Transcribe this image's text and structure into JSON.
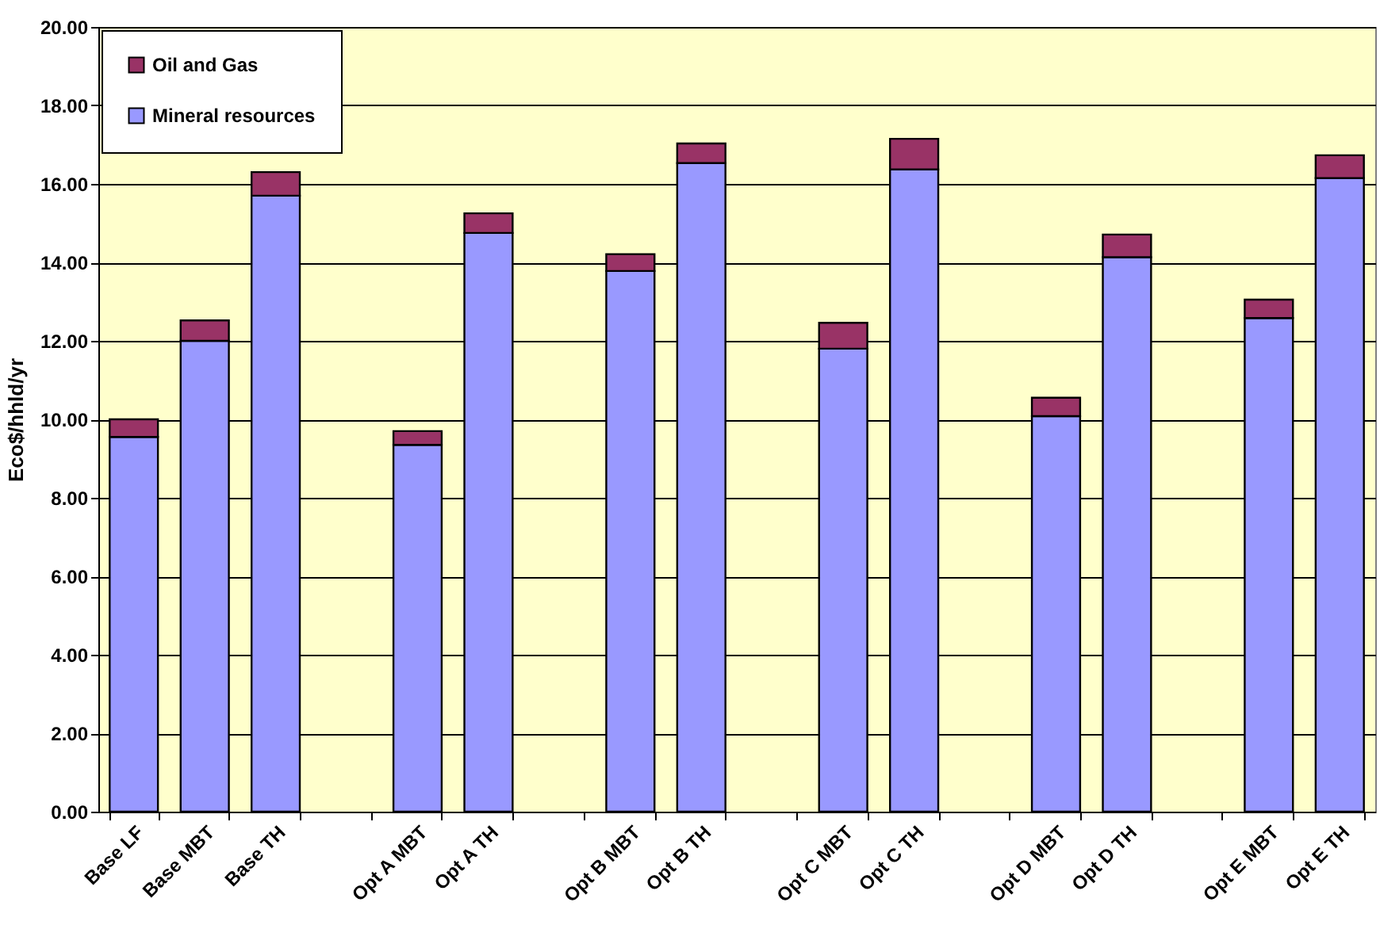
{
  "chart_data": {
    "type": "bar",
    "stacked": true,
    "ylabel": "Eco$/hhld/yr",
    "categories": [
      "Base LF",
      "Base MBT",
      "Base TH",
      null,
      "Opt A MBT",
      "Opt A TH",
      null,
      "Opt B MBT",
      "Opt B TH",
      null,
      "Opt C MBT",
      "Opt C TH",
      null,
      "Opt D MBT",
      "Opt D TH",
      null,
      "Opt E MBT",
      "Opt E TH"
    ],
    "series": [
      {
        "name": "Mineral resources",
        "color": "#9999ff",
        "values": [
          9.55,
          12.0,
          15.7,
          null,
          9.35,
          14.75,
          null,
          13.78,
          16.53,
          null,
          11.8,
          16.37,
          null,
          10.08,
          14.13,
          null,
          12.58,
          16.15
        ]
      },
      {
        "name": "Oil and Gas",
        "color": "#993366",
        "values": [
          0.45,
          0.52,
          0.6,
          null,
          0.35,
          0.5,
          null,
          0.43,
          0.5,
          null,
          0.66,
          0.78,
          null,
          0.47,
          0.58,
          null,
          0.47,
          0.58
        ]
      }
    ],
    "ylim": [
      0,
      20
    ],
    "yticks": [
      {
        "value": 0,
        "label": "0.00"
      },
      {
        "value": 2,
        "label": "2.00"
      },
      {
        "value": 4,
        "label": "4.00"
      },
      {
        "value": 6,
        "label": "6.00"
      },
      {
        "value": 8,
        "label": "8.00"
      },
      {
        "value": 10,
        "label": "10.00"
      },
      {
        "value": 12,
        "label": "12.00"
      },
      {
        "value": 14,
        "label": "14.00"
      },
      {
        "value": 16,
        "label": "16.00"
      },
      {
        "value": 18,
        "label": "18.00"
      },
      {
        "value": 20,
        "label": "20.00"
      }
    ],
    "grid": "y",
    "legend": "top left"
  }
}
